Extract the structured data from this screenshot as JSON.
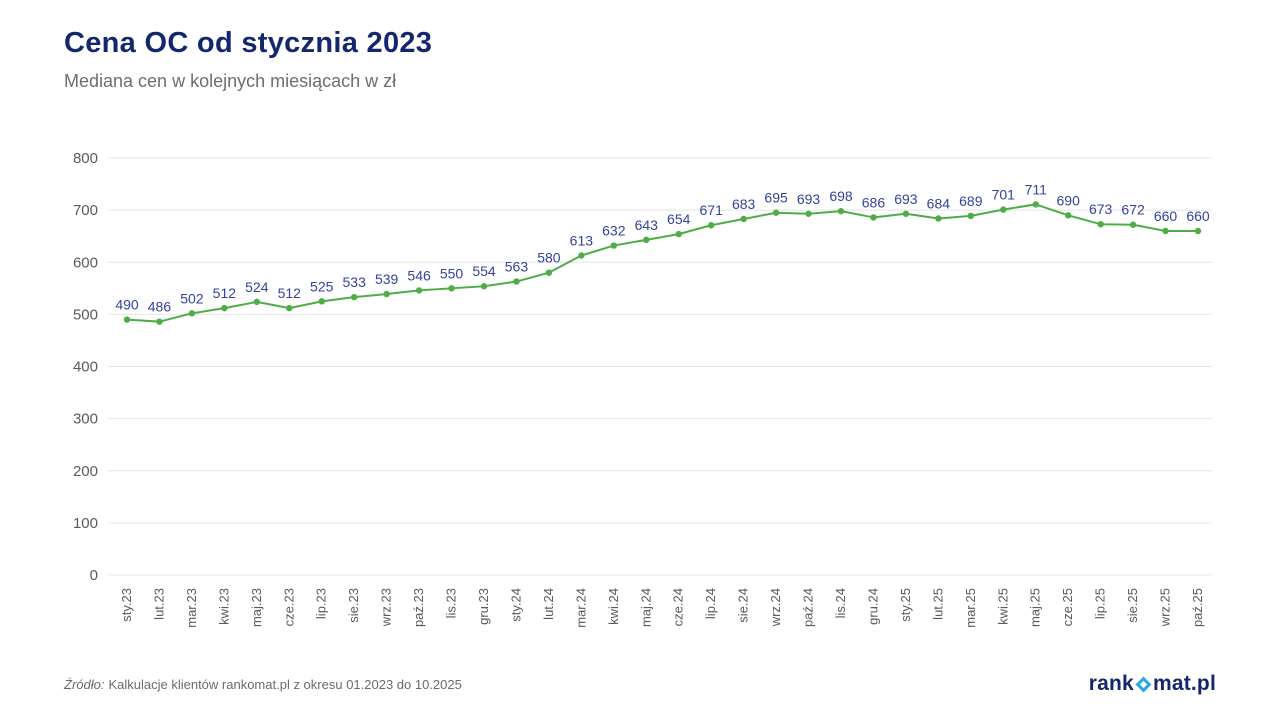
{
  "header": {
    "title": "Cena OC od stycznia 2023",
    "subtitle": "Mediana cen w kolejnych miesiącach w zł"
  },
  "chart_data": {
    "type": "line",
    "title": "Cena OC od stycznia 2023",
    "subtitle": "Mediana cen w kolejnych miesiącach w zł",
    "categories": [
      "sty.23",
      "lut.23",
      "mar.23",
      "kwi.23",
      "maj.23",
      "cze.23",
      "lip.23",
      "sie.23",
      "wrz.23",
      "paź.23",
      "lis.23",
      "gru.23",
      "sty.24",
      "lut.24",
      "mar.24",
      "kwi.24",
      "maj.24",
      "cze.24",
      "lip.24",
      "sie.24",
      "wrz.24",
      "paź.24",
      "lis.24",
      "gru.24",
      "sty.25",
      "lut.25",
      "mar.25",
      "kwi.25",
      "maj.25",
      "cze.25",
      "lip.25",
      "sie.25",
      "wrz.25",
      "paź.25"
    ],
    "values": [
      490,
      486,
      502,
      512,
      524,
      512,
      525,
      533,
      539,
      546,
      550,
      554,
      563,
      580,
      613,
      632,
      643,
      654,
      671,
      683,
      695,
      693,
      698,
      686,
      693,
      684,
      689,
      701,
      711,
      690,
      673,
      672,
      660,
      660
    ],
    "xlabel": "",
    "ylabel": "",
    "ylim": [
      0,
      800
    ],
    "yticks": [
      0,
      100,
      200,
      300,
      400,
      500,
      600,
      700,
      800
    ],
    "grid": true,
    "legend": false,
    "point_labels_visible": true,
    "line_color": "#4ead46",
    "point_label_color": "#34439c"
  },
  "footer": {
    "source_label": "Źródło:",
    "source_text": "Kalkulacje klientów rankomat.pl z okresu 01.2023 do 10.2025"
  },
  "logo": {
    "prefix": "rank",
    "suffix": "mat.pl",
    "diamond_color": "#2aa9e0",
    "text_color": "#14276e"
  }
}
